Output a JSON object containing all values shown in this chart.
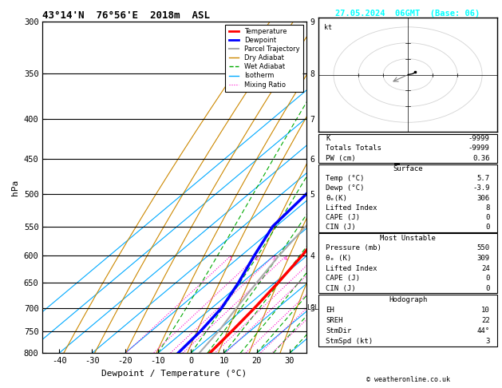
{
  "title_left": "43°14'N  76°56'E  2018m  ASL",
  "title_right": "27.05.2024  06GMT  (Base: 06)",
  "xlabel": "Dewpoint / Temperature (°C)",
  "ylabel_left": "hPa",
  "pressure_levels": [
    300,
    350,
    400,
    450,
    500,
    550,
    600,
    650,
    700,
    750,
    800
  ],
  "pressure_min": 300,
  "pressure_max": 800,
  "temp_min": -45,
  "temp_max": 35,
  "skew_factor": 1.5,
  "temp_data_T": [
    -12.0,
    -10.8,
    -9.5,
    -8.2,
    -6.5,
    -5.0,
    -1.5,
    1.0,
    3.0,
    4.5,
    5.7
  ],
  "temp_data_P": [
    300,
    350,
    400,
    450,
    500,
    550,
    600,
    650,
    700,
    750,
    800
  ],
  "dewp_data_T": [
    -25.0,
    -24.5,
    -24.0,
    -23.5,
    -22.5,
    -21.0,
    -16.0,
    -11.0,
    -7.0,
    -5.0,
    -3.9
  ],
  "dewp_data_P": [
    300,
    350,
    400,
    450,
    500,
    550,
    600,
    650,
    700,
    750,
    800
  ],
  "parcel_data_T": [
    -12.0,
    -12.5,
    -13.0,
    -13.5,
    -13.0,
    -11.0,
    -8.5,
    -5.5,
    -2.5,
    0.5,
    2.5
  ],
  "parcel_data_P": [
    300,
    350,
    400,
    450,
    500,
    550,
    600,
    650,
    700,
    750,
    800
  ],
  "dry_adiabat_thetas": [
    250,
    260,
    270,
    280,
    290,
    300,
    310,
    320,
    330,
    340,
    350,
    360,
    370,
    380
  ],
  "wet_adiabat_T0s": [
    -10,
    0,
    5,
    10,
    15,
    20,
    25,
    30
  ],
  "isotherm_temps": [
    -60,
    -50,
    -40,
    -30,
    -20,
    -10,
    0,
    10,
    20,
    30,
    40,
    50
  ],
  "mixing_ratio_values": [
    1,
    2,
    3,
    4,
    8,
    10,
    15,
    20,
    25
  ],
  "km_labels": {
    "300": "9",
    "350": "8",
    "400": "7",
    "450": "6",
    "500": "5",
    "600": "4",
    "700": "3"
  },
  "lcl_pressure": 700,
  "color_temp": "#ff0000",
  "color_dewp": "#0000ff",
  "color_parcel": "#aaaaaa",
  "color_dry_adiabat": "#cc8800",
  "color_wet_adiabat": "#00aa00",
  "color_isotherm": "#00aaff",
  "color_mixing": "#ff00cc",
  "bg_color": "#ffffff",
  "info_K": "-9999",
  "info_TT": "-9999",
  "info_PW": "0.36",
  "sfc_temp": "5.7",
  "sfc_dewp": "-3.9",
  "sfc_theta": "306",
  "sfc_li": "8",
  "sfc_cape": "0",
  "sfc_cin": "0",
  "mu_pressure": "550",
  "mu_theta": "309",
  "mu_li": "24",
  "mu_cape": "0",
  "mu_cin": "0",
  "hodo_EH": "10",
  "hodo_SREH": "22",
  "hodo_StmDir": "44°",
  "hodo_StmSpd": "3"
}
